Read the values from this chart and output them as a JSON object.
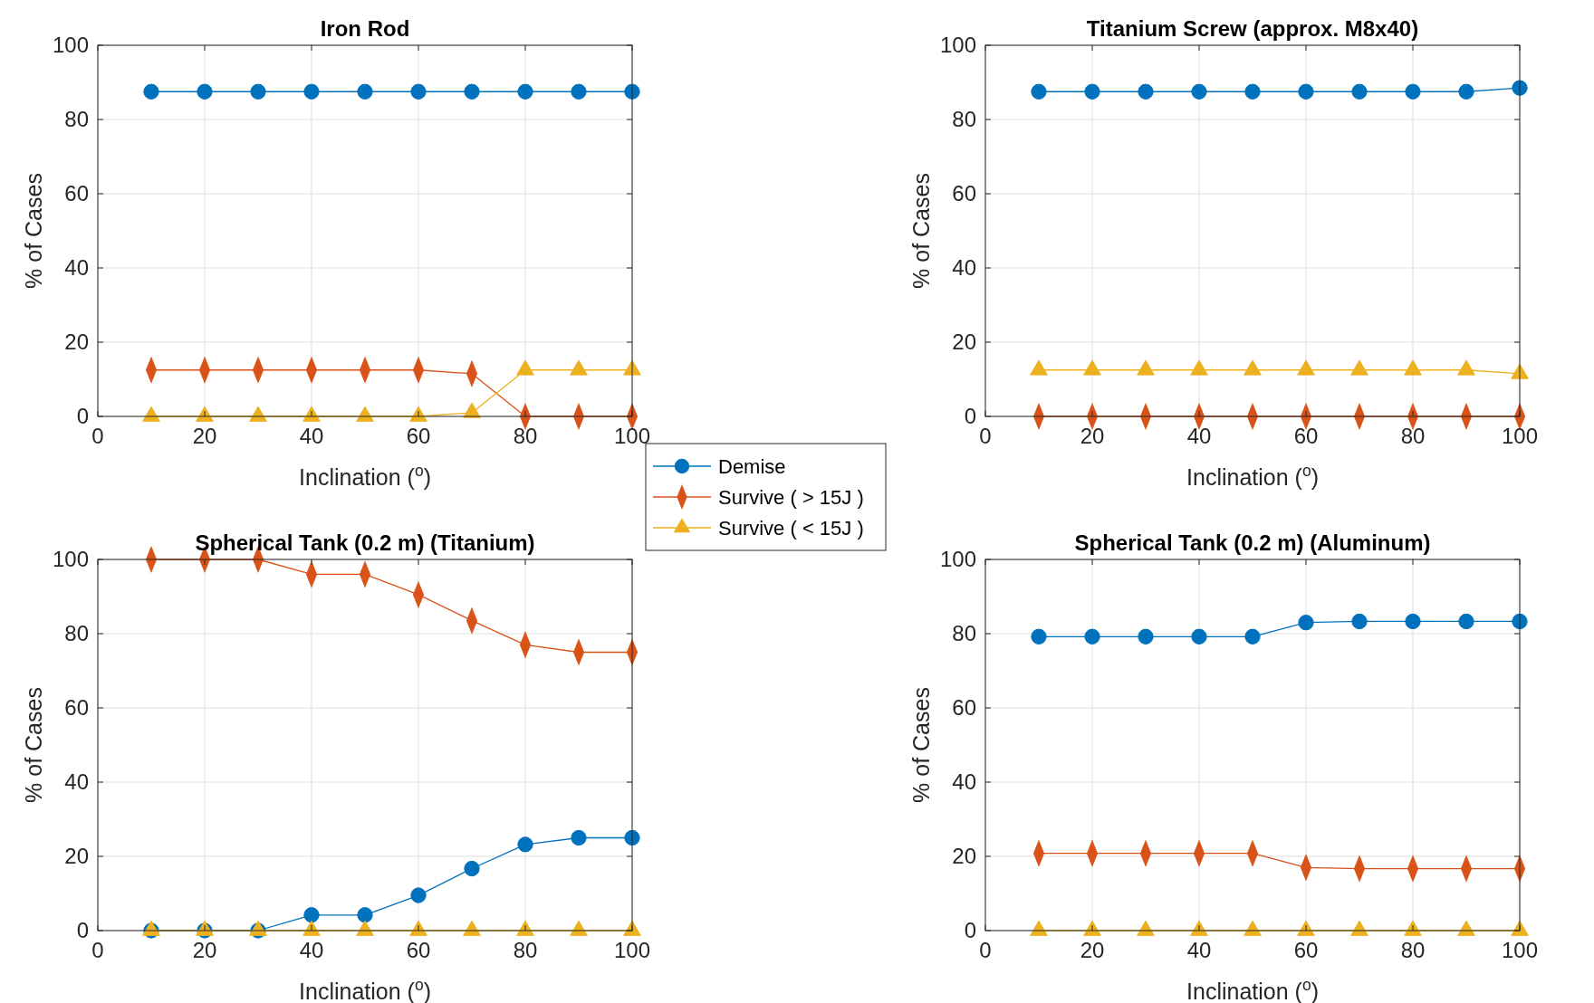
{
  "chart_data": [
    {
      "type": "line",
      "title": "Iron Rod",
      "xlabel": "Inclination ($^{o}$)",
      "ylabel": "% of Cases",
      "x": [
        10,
        20,
        30,
        40,
        50,
        60,
        70,
        80,
        90,
        100
      ],
      "xlim": [
        0,
        100
      ],
      "xticks": [
        0,
        20,
        40,
        60,
        80,
        100
      ],
      "ylim": [
        0,
        100
      ],
      "yticks": [
        0,
        20,
        40,
        60,
        80,
        100
      ],
      "grid": true,
      "legend": "bottom right",
      "series": [
        {
          "name": "Demise",
          "color": "#0072bd",
          "marker": "circle",
          "values": [
            87.5,
            87.5,
            87.5,
            87.5,
            87.5,
            87.5,
            87.5,
            87.5,
            87.5,
            87.5
          ]
        },
        {
          "name": "Survive ( > 15J )",
          "color": "#d95319",
          "marker": "diamond",
          "values": [
            12.5,
            12.5,
            12.5,
            12.5,
            12.5,
            12.5,
            11.5,
            0,
            0,
            0
          ]
        },
        {
          "name": "Survive ( < 15J )",
          "color": "#edb120",
          "marker": "triangle",
          "values": [
            0,
            0,
            0,
            0,
            0,
            0,
            1,
            12.5,
            12.5,
            12.5
          ]
        }
      ]
    },
    {
      "type": "line",
      "title": "Titanium Screw (approx. M8x40)",
      "xlabel": "Inclination ($^{o}$)",
      "ylabel": "% of Cases",
      "x": [
        10,
        20,
        30,
        40,
        50,
        60,
        70,
        80,
        90,
        100
      ],
      "xlim": [
        0,
        100
      ],
      "xticks": [
        0,
        20,
        40,
        60,
        80,
        100
      ],
      "ylim": [
        0,
        100
      ],
      "yticks": [
        0,
        20,
        40,
        60,
        80,
        100
      ],
      "grid": true,
      "series": [
        {
          "color": "#0072bd",
          "marker": "circle",
          "values": [
            87.5,
            87.5,
            87.5,
            87.5,
            87.5,
            87.5,
            87.5,
            87.5,
            87.5,
            88.5
          ]
        },
        {
          "color": "#d95319",
          "marker": "diamond",
          "values": [
            0,
            0,
            0,
            0,
            0,
            0,
            0,
            0,
            0,
            0
          ]
        },
        {
          "color": "#edb120",
          "marker": "triangle",
          "values": [
            12.5,
            12.5,
            12.5,
            12.5,
            12.5,
            12.5,
            12.5,
            12.5,
            12.5,
            11.5
          ]
        }
      ]
    },
    {
      "type": "line",
      "title": "Spherical Tank (0.2 m) (Titanium)",
      "xlabel": "Inclination ($^{o}$)",
      "ylabel": "% of Cases",
      "x": [
        10,
        20,
        30,
        40,
        50,
        60,
        70,
        80,
        90,
        100
      ],
      "xlim": [
        0,
        100
      ],
      "xticks": [
        0,
        20,
        40,
        60,
        80,
        100
      ],
      "ylim": [
        0,
        100
      ],
      "yticks": [
        0,
        20,
        40,
        60,
        80,
        100
      ],
      "grid": true,
      "series": [
        {
          "color": "#0072bd",
          "marker": "circle",
          "values": [
            0,
            0,
            0,
            4.2,
            4.2,
            9.5,
            16.7,
            23.2,
            25,
            25
          ]
        },
        {
          "color": "#d95319",
          "marker": "diamond",
          "values": [
            100,
            100,
            100,
            96,
            96,
            90.5,
            83.5,
            77,
            75,
            75
          ]
        },
        {
          "color": "#edb120",
          "marker": "triangle",
          "values": [
            0,
            0,
            0,
            0,
            0,
            0,
            0,
            0,
            0,
            0
          ]
        }
      ]
    },
    {
      "type": "line",
      "title": "Spherical Tank (0.2 m) (Aluminum)",
      "xlabel": "Inclination ($^{o}$)",
      "ylabel": "% of Cases",
      "x": [
        10,
        20,
        30,
        40,
        50,
        60,
        70,
        80,
        90,
        100
      ],
      "xlim": [
        0,
        100
      ],
      "xticks": [
        0,
        20,
        40,
        60,
        80,
        100
      ],
      "ylim": [
        0,
        100
      ],
      "yticks": [
        0,
        20,
        40,
        60,
        80,
        100
      ],
      "grid": true,
      "series": [
        {
          "color": "#0072bd",
          "marker": "circle",
          "values": [
            79.2,
            79.2,
            79.2,
            79.2,
            79.2,
            83,
            83.3,
            83.3,
            83.3,
            83.3
          ]
        },
        {
          "color": "#d95319",
          "marker": "diamond",
          "values": [
            20.8,
            20.8,
            20.8,
            20.8,
            20.8,
            17,
            16.7,
            16.7,
            16.7,
            16.7
          ]
        },
        {
          "color": "#edb120",
          "marker": "triangle",
          "values": [
            0,
            0,
            0,
            0,
            0,
            0,
            0,
            0,
            0,
            0
          ]
        }
      ]
    }
  ]
}
